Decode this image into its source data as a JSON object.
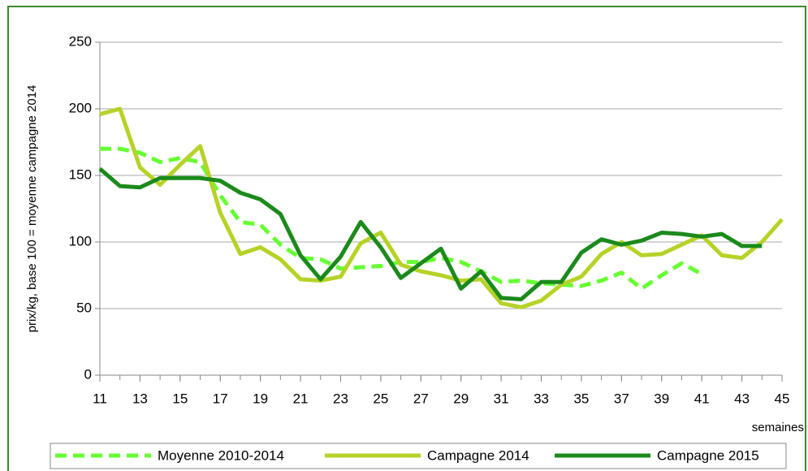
{
  "chart_data": {
    "type": "line",
    "y_label": "prix/kg, base 100 = moyenne campagne 2014",
    "x_label": "semaines",
    "x": [
      11,
      12,
      13,
      14,
      15,
      16,
      17,
      18,
      19,
      20,
      21,
      22,
      23,
      24,
      25,
      26,
      27,
      28,
      29,
      30,
      31,
      32,
      33,
      34,
      35,
      36,
      37,
      38,
      39,
      40,
      41,
      42,
      43,
      44,
      45
    ],
    "series": [
      {
        "name": "Moyenne 2010-2014",
        "color": "#66ff33",
        "dashed": true,
        "values": [
          170,
          170,
          167,
          160,
          163,
          160,
          135,
          115,
          113,
          98,
          88,
          87,
          80,
          81,
          82,
          85,
          85,
          88,
          85,
          78,
          70,
          71,
          69,
          68,
          67,
          71,
          77,
          65,
          75,
          84,
          76,
          null,
          null,
          null,
          null
        ]
      },
      {
        "name": "Campagne 2014",
        "color": "#b5d327",
        "dashed": false,
        "values": [
          196,
          200,
          156,
          143,
          158,
          172,
          122,
          91,
          96,
          87,
          72,
          71,
          74,
          99,
          107,
          83,
          78,
          75,
          71,
          72,
          54,
          51,
          56,
          68,
          74,
          91,
          100,
          90,
          91,
          98,
          105,
          90,
          88,
          100,
          117
        ]
      },
      {
        "name": "Campagne 2015",
        "color": "#1b8a1b",
        "dashed": false,
        "values": [
          155,
          142,
          141,
          148,
          148,
          148,
          146,
          137,
          132,
          121,
          90,
          72,
          89,
          115,
          96,
          73,
          84,
          95,
          65,
          78,
          58,
          57,
          70,
          70,
          92,
          102,
          98,
          101,
          107,
          106,
          104,
          106,
          97,
          97,
          null
        ]
      }
    ],
    "xlim": [
      11,
      45
    ],
    "xticks": [
      11,
      13,
      15,
      17,
      19,
      21,
      23,
      25,
      27,
      29,
      31,
      33,
      35,
      37,
      39,
      41,
      43,
      45
    ],
    "ylim": [
      0,
      250
    ],
    "yticks": [
      0,
      50,
      100,
      150,
      200,
      250
    ],
    "grid": true,
    "legend": "bottom"
  }
}
